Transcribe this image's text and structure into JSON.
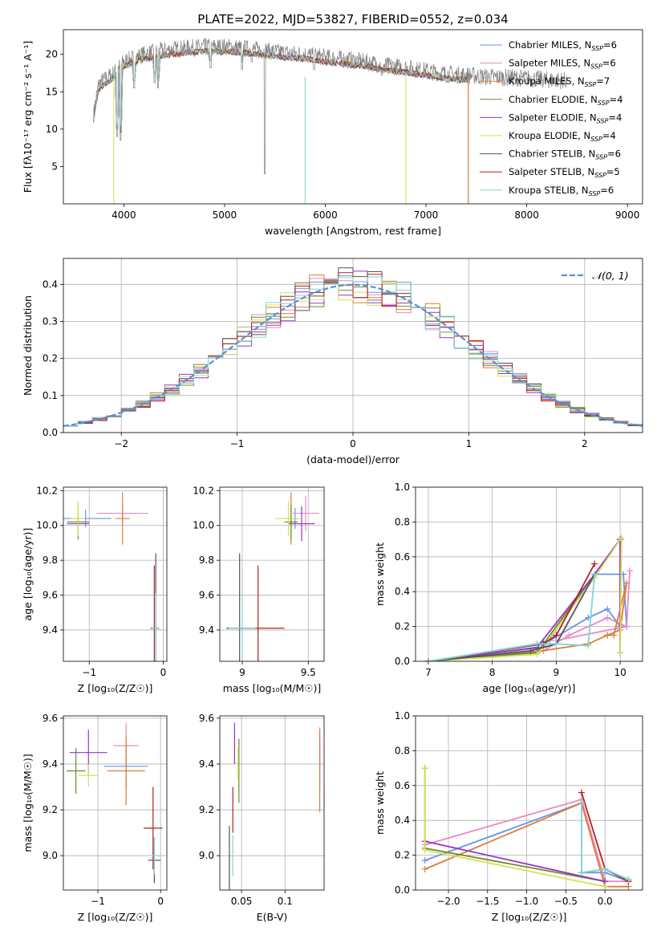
{
  "title": "PLATE=2022, MJD=53827, FIBERID=0552, z=0.034",
  "legend_series": [
    {
      "label": "Chabrier MILES, N",
      "sub": "SSP",
      "suffix": "=6",
      "color": "#6495ed"
    },
    {
      "label": "Salpeter MILES, N",
      "sub": "SSP",
      "suffix": "=6",
      "color": "#e78ac3"
    },
    {
      "label": "Kroupa MILES, N",
      "sub": "SSP",
      "suffix": "=7",
      "color": "#e07b39"
    },
    {
      "label": "Chabrier ELODIE, N",
      "sub": "SSP",
      "suffix": "=4",
      "color": "#6b8e23"
    },
    {
      "label": "Salpeter ELODIE, N",
      "sub": "SSP",
      "suffix": "=4",
      "color": "#9932cc"
    },
    {
      "label": "Kroupa ELODIE, N",
      "sub": "SSP",
      "suffix": "=4",
      "color": "#d4e157"
    },
    {
      "label": "Chabrier STELIB, N",
      "sub": "SSP",
      "suffix": "=6",
      "color": "#555555"
    },
    {
      "label": "Salpeter STELIB, N",
      "sub": "SSP",
      "suffix": "=5",
      "color": "#b22222"
    },
    {
      "label": "Kroupa STELIB, N",
      "sub": "SSP",
      "suffix": "=6",
      "color": "#7fd6d6"
    }
  ],
  "chart_data": [
    {
      "id": "spectrum",
      "type": "line",
      "xlabel": "wavelength [Angstrom, rest frame]",
      "ylabel": "Flux [fλ10⁻¹⁷ erg cm⁻² s⁻¹ A⁻¹]",
      "xlim": [
        3400,
        9150
      ],
      "ylim": [
        0,
        23.3
      ],
      "xticks": [
        4000,
        5000,
        6000,
        7000,
        8000,
        9000
      ],
      "yticks": [
        5,
        10,
        15,
        20
      ],
      "data_color": "#808080",
      "data_range": [
        3700,
        8400
      ],
      "model_range": [
        3700,
        7420
      ],
      "continuum": [
        [
          3700,
          12
        ],
        [
          3750,
          16
        ],
        [
          3800,
          16.5
        ],
        [
          3900,
          17.5
        ],
        [
          4000,
          19
        ],
        [
          4100,
          19.5
        ],
        [
          4200,
          20
        ],
        [
          4400,
          20.5
        ],
        [
          4600,
          20.8
        ],
        [
          4800,
          21
        ],
        [
          5000,
          21
        ],
        [
          5200,
          20.8
        ],
        [
          5400,
          20.5
        ],
        [
          5600,
          20.2
        ],
        [
          5800,
          20
        ],
        [
          6000,
          19.6
        ],
        [
          6200,
          19.3
        ],
        [
          6400,
          19
        ],
        [
          6600,
          18.5
        ],
        [
          6800,
          18.2
        ],
        [
          7000,
          17.8
        ],
        [
          7200,
          17.4
        ],
        [
          7400,
          17.2
        ],
        [
          7600,
          17
        ],
        [
          7800,
          16.9
        ],
        [
          8000,
          16.8
        ],
        [
          8200,
          16.6
        ],
        [
          8400,
          16.5
        ]
      ],
      "absorption_lines": [
        [
          3934,
          9.0
        ],
        [
          3968,
          8.5
        ],
        [
          4102,
          15.5
        ],
        [
          4305,
          16.2
        ],
        [
          4340,
          15.5
        ],
        [
          4861,
          18.2
        ],
        [
          5175,
          18.0
        ],
        [
          5270,
          19.0
        ],
        [
          5890,
          18.0
        ],
        [
          6563,
          17.2
        ]
      ],
      "artifacts": [
        [
          5800,
          0
        ],
        [
          6800,
          0
        ],
        [
          3900,
          0
        ],
        [
          7420,
          0
        ]
      ],
      "grid": false,
      "legend_position": "upper-right"
    },
    {
      "id": "residual_hist",
      "type": "histogram",
      "xlabel": "(data-model)/error",
      "ylabel": "Normed distribution",
      "xlim": [
        -2.5,
        2.5
      ],
      "ylim": [
        0,
        0.47
      ],
      "xticks": [
        -2,
        -1,
        0,
        1,
        2
      ],
      "yticks": [
        0.0,
        0.1,
        0.2,
        0.3,
        0.4
      ],
      "bins": 40,
      "reference_label": "𝒩(0, 1)",
      "reference_color": "#5b8fd6",
      "grid": true,
      "legend_position": "upper-right"
    },
    {
      "id": "age_vs_Z",
      "type": "errorbar",
      "xlabel": "Z [log₁₀(Z/Z☉)]",
      "ylabel": "age  [log₁₀(age/yr)]",
      "xlim": [
        -1.35,
        0.05
      ],
      "ylim": [
        9.22,
        10.22
      ],
      "xticks": [
        -1,
        0
      ],
      "yticks": [
        9.4,
        9.6,
        9.8,
        10.0,
        10.2
      ],
      "points": [
        {
          "s": 0,
          "x": -1.05,
          "y": 10.04,
          "xe": 0.35,
          "ye": 0.05
        },
        {
          "s": 1,
          "x": -0.55,
          "y": 10.07,
          "xe": 0.35,
          "ye": 0.05
        },
        {
          "s": 2,
          "x": -0.55,
          "y": 10.04,
          "xe": 0.1,
          "ye": 0.15
        },
        {
          "s": 3,
          "x": -1.15,
          "y": 10.02,
          "xe": 0.15,
          "ye": 0.1
        },
        {
          "s": 4,
          "x": -1.15,
          "y": 10.01,
          "xe": 0.15,
          "ye": 0.05
        },
        {
          "s": 5,
          "x": -1.15,
          "y": 10.04,
          "xe": 0.1,
          "ye": 0.1
        },
        {
          "s": 6,
          "x": -0.1,
          "y": 9.41,
          "xe": 0.05,
          "ye": 0.43
        },
        {
          "s": 7,
          "x": -0.12,
          "y": 9.41,
          "xe": 0.05,
          "ye": 0.36
        },
        {
          "s": 8,
          "x": -0.1,
          "y": 9.41,
          "xe": 0.05,
          "ye": 0.2
        }
      ]
    },
    {
      "id": "age_vs_mass",
      "type": "errorbar",
      "xlabel": "mass [log₁₀(M/M☉)]",
      "ylabel": "",
      "xlim": [
        8.83,
        9.62
      ],
      "ylim": [
        9.22,
        10.22
      ],
      "xticks": [
        9.0,
        9.5
      ],
      "yticks": [
        9.4,
        9.6,
        9.8,
        10.0,
        10.2
      ],
      "points": [
        {
          "s": 0,
          "x": 9.4,
          "y": 10.04,
          "xe": 0.05,
          "ye": 0.06
        },
        {
          "s": 1,
          "x": 9.48,
          "y": 10.07,
          "xe": 0.1,
          "ye": 0.1
        },
        {
          "s": 2,
          "x": 9.37,
          "y": 10.04,
          "xe": 0.05,
          "ye": 0.15
        },
        {
          "s": 3,
          "x": 9.37,
          "y": 10.02,
          "xe": 0.05,
          "ye": 0.1
        },
        {
          "s": 4,
          "x": 9.45,
          "y": 10.01,
          "xe": 0.1,
          "ye": 0.1
        },
        {
          "s": 5,
          "x": 9.35,
          "y": 10.04,
          "xe": 0.1,
          "ye": 0.1
        },
        {
          "s": 6,
          "x": 8.98,
          "y": 9.41,
          "xe": 0.1,
          "ye": 0.43
        },
        {
          "s": 7,
          "x": 9.12,
          "y": 9.41,
          "xe": 0.2,
          "ye": 0.36
        },
        {
          "s": 8,
          "x": 9.0,
          "y": 9.41,
          "xe": 0.1,
          "ye": 0.2
        }
      ]
    },
    {
      "id": "weight_vs_age",
      "type": "line",
      "xlabel": "age  [log₁₀(age/yr)]",
      "ylabel": "mass weight",
      "xlim": [
        6.8,
        10.35
      ],
      "ylim": [
        0.0,
        1.0
      ],
      "xticks": [
        7,
        8,
        9,
        10
      ],
      "yticks": [
        0.0,
        0.2,
        0.4,
        0.6,
        0.8,
        1.0
      ],
      "series": [
        {
          "s": 0,
          "points": [
            [
              7.0,
              0.0
            ],
            [
              8.7,
              0.1
            ],
            [
              8.9,
              0.12
            ],
            [
              9.5,
              0.25
            ],
            [
              9.8,
              0.3
            ],
            [
              10.0,
              0.2
            ],
            [
              10.1,
              0.2
            ],
            [
              10.05,
              0.5
            ],
            [
              9.6,
              0.5
            ],
            [
              8.8,
              0.08
            ],
            [
              7.0,
              0.0
            ]
          ]
        },
        {
          "s": 1,
          "points": [
            [
              7.0,
              0.0
            ],
            [
              8.8,
              0.06
            ],
            [
              9.2,
              0.15
            ],
            [
              9.8,
              0.25
            ],
            [
              10.1,
              0.2
            ],
            [
              10.15,
              0.52
            ],
            [
              10.1,
              0.2
            ],
            [
              9.0,
              0.12
            ]
          ]
        },
        {
          "s": 2,
          "points": [
            [
              7.0,
              0.0
            ],
            [
              8.6,
              0.05
            ],
            [
              9.5,
              0.1
            ],
            [
              9.8,
              0.15
            ],
            [
              10.0,
              0.18
            ],
            [
              10.1,
              0.45
            ],
            [
              9.9,
              0.15
            ],
            [
              9.8,
              0.15
            ]
          ]
        },
        {
          "s": 3,
          "points": [
            [
              7.0,
              0.0
            ],
            [
              8.7,
              0.05
            ],
            [
              9.6,
              0.5
            ],
            [
              10.0,
              0.7
            ],
            [
              10.0,
              0.05
            ]
          ]
        },
        {
          "s": 4,
          "points": [
            [
              7.0,
              0.0
            ],
            [
              8.7,
              0.08
            ],
            [
              9.6,
              0.5
            ],
            [
              10.0,
              0.7
            ],
            [
              10.0,
              0.05
            ]
          ]
        },
        {
          "s": 5,
          "points": [
            [
              7.0,
              0.0
            ],
            [
              8.7,
              0.04
            ],
            [
              9.6,
              0.48
            ],
            [
              10.02,
              0.71
            ],
            [
              10.0,
              0.05
            ]
          ]
        },
        {
          "s": 6,
          "points": [
            [
              7.0,
              0.0
            ],
            [
              8.6,
              0.06
            ],
            [
              9.0,
              0.1
            ],
            [
              9.6,
              0.5
            ]
          ]
        },
        {
          "s": 7,
          "points": [
            [
              7.0,
              0.0
            ],
            [
              8.8,
              0.1
            ],
            [
              9.0,
              0.15
            ],
            [
              9.6,
              0.56
            ]
          ]
        },
        {
          "s": 8,
          "points": [
            [
              7.0,
              0.0
            ],
            [
              8.7,
              0.1
            ],
            [
              9.0,
              0.1
            ],
            [
              9.5,
              0.09
            ],
            [
              9.6,
              0.5
            ]
          ]
        }
      ]
    },
    {
      "id": "mass_vs_Z",
      "type": "errorbar",
      "xlabel": "Z [log₁₀(Z/Z☉)]",
      "ylabel": "mass [log₁₀(M/M☉)]",
      "xlim": [
        -1.55,
        0.1
      ],
      "ylim": [
        8.85,
        9.61
      ],
      "xticks": [
        -1,
        0
      ],
      "yticks": [
        9.0,
        9.2,
        9.4,
        9.6
      ],
      "points": [
        {
          "s": 0,
          "x": -0.55,
          "y": 9.39,
          "xe": 0.35,
          "ye": 0.1
        },
        {
          "s": 1,
          "x": -0.55,
          "y": 9.48,
          "xe": 0.2,
          "ye": 0.1
        },
        {
          "s": 2,
          "x": -0.55,
          "y": 9.37,
          "xe": 0.3,
          "ye": 0.15
        },
        {
          "s": 3,
          "x": -1.35,
          "y": 9.37,
          "xe": 0.15,
          "ye": 0.1
        },
        {
          "s": 4,
          "x": -1.15,
          "y": 9.45,
          "xe": 0.3,
          "ye": 0.1
        },
        {
          "s": 5,
          "x": -1.15,
          "y": 9.35,
          "xe": 0.15,
          "ye": 0.05
        },
        {
          "s": 6,
          "x": -0.1,
          "y": 8.98,
          "xe": 0.1,
          "ye": 0.1
        },
        {
          "s": 7,
          "x": -0.12,
          "y": 9.12,
          "xe": 0.15,
          "ye": 0.18
        },
        {
          "s": 8,
          "x": -0.1,
          "y": 9.0,
          "xe": 0.05,
          "ye": 0.08
        }
      ]
    },
    {
      "id": "mass_vs_EBV",
      "type": "errorbar",
      "xlabel": "E(B-V)",
      "ylabel": "",
      "xlim": [
        0.025,
        0.145
      ],
      "ylim": [
        8.85,
        9.61
      ],
      "xticks": [
        0.05,
        0.1
      ],
      "ytick_labels_x_only": true,
      "yticks": [
        9.0,
        9.2,
        9.4,
        9.6
      ],
      "points": [
        {
          "s": 0,
          "x": 0.14,
          "y": 9.39,
          "xe": 0.0,
          "ye": 0.1
        },
        {
          "s": 1,
          "x": 0.14,
          "y": 9.48,
          "xe": 0.0,
          "ye": 0.08
        },
        {
          "s": 2,
          "x": 0.14,
          "y": 9.37,
          "xe": 0.0,
          "ye": 0.18
        },
        {
          "s": 3,
          "x": 0.047,
          "y": 9.37,
          "xe": 0.0,
          "ye": 0.14
        },
        {
          "s": 4,
          "x": 0.042,
          "y": 9.49,
          "xe": 0.0,
          "ye": 0.09
        },
        {
          "s": 5,
          "x": 0.046,
          "y": 9.4,
          "xe": 0.0,
          "ye": 0.07
        },
        {
          "s": 6,
          "x": 0.036,
          "y": 8.98,
          "xe": 0.0,
          "ye": 0.15
        },
        {
          "s": 7,
          "x": 0.04,
          "y": 9.2,
          "xe": 0.0,
          "ye": 0.1
        },
        {
          "s": 8,
          "x": 0.04,
          "y": 9.0,
          "xe": 0.0,
          "ye": 0.09
        }
      ]
    },
    {
      "id": "weight_vs_Z",
      "type": "line",
      "xlabel": "Z [log₁₀(Z/Z☉)]",
      "ylabel": "mass weight",
      "xlim": [
        -2.42,
        0.48
      ],
      "ylim": [
        0.0,
        1.0
      ],
      "xticks": [
        -2.0,
        -1.5,
        -1.0,
        -0.5,
        0.0
      ],
      "xtick_labels": [
        "−2.0",
        "−1.5",
        "−1.0",
        "−0.5",
        "0.0"
      ],
      "yticks": [
        0.0,
        0.2,
        0.4,
        0.6,
        0.8,
        1.0
      ],
      "series": [
        {
          "s": 0,
          "points": [
            [
              -2.3,
              0.17
            ],
            [
              -0.3,
              0.5
            ],
            [
              -0.3,
              0.1
            ],
            [
              0.0,
              0.1
            ],
            [
              0.3,
              0.05
            ]
          ]
        },
        {
          "s": 1,
          "points": [
            [
              -2.3,
              0.26
            ],
            [
              -0.3,
              0.52
            ],
            [
              0.0,
              0.05
            ],
            [
              0.3,
              0.05
            ]
          ]
        },
        {
          "s": 2,
          "points": [
            [
              -2.3,
              0.12
            ],
            [
              -0.3,
              0.5
            ],
            [
              0.0,
              0.02
            ],
            [
              0.3,
              0.02
            ]
          ]
        },
        {
          "s": 3,
          "points": [
            [
              -2.3,
              0.7
            ],
            [
              -2.3,
              0.24
            ],
            [
              0.0,
              0.05
            ]
          ]
        },
        {
          "s": 4,
          "points": [
            [
              -2.3,
              0.28
            ],
            [
              0.0,
              0.05
            ]
          ]
        },
        {
          "s": 5,
          "points": [
            [
              -2.3,
              0.7
            ],
            [
              -2.3,
              0.23
            ],
            [
              0.0,
              0.02
            ]
          ]
        },
        {
          "s": 6,
          "points": [
            [
              -0.3,
              0.1
            ],
            [
              0.0,
              0.12
            ],
            [
              0.3,
              0.06
            ]
          ]
        },
        {
          "s": 7,
          "points": [
            [
              -0.3,
              0.56
            ],
            [
              0.0,
              0.12
            ],
            [
              0.3,
              0.05
            ]
          ]
        },
        {
          "s": 8,
          "points": [
            [
              -0.3,
              0.5
            ],
            [
              -0.3,
              0.1
            ],
            [
              0.0,
              0.12
            ],
            [
              0.3,
              0.06
            ]
          ]
        }
      ]
    }
  ]
}
